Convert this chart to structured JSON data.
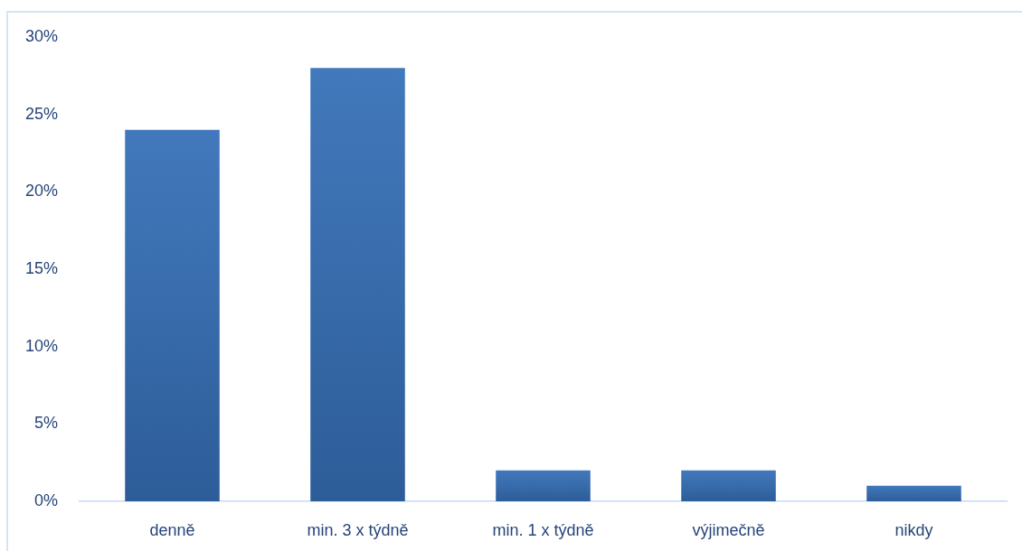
{
  "chart_data": {
    "type": "bar",
    "categories": [
      "denně",
      "min. 3 x týdně",
      "min. 1 x týdně",
      "výjimečně",
      "nikdy"
    ],
    "values": [
      24,
      28,
      2,
      2,
      1
    ],
    "color": "#3670b8",
    "ylim": [
      0,
      30
    ],
    "yticks": [
      {
        "value": 0,
        "label": "0%"
      },
      {
        "value": 5,
        "label": "5%"
      },
      {
        "value": 10,
        "label": "10%"
      },
      {
        "value": 15,
        "label": "15%"
      },
      {
        "value": 20,
        "label": "20%"
      },
      {
        "value": 25,
        "label": "25%"
      },
      {
        "value": 30,
        "label": "30%"
      }
    ]
  }
}
